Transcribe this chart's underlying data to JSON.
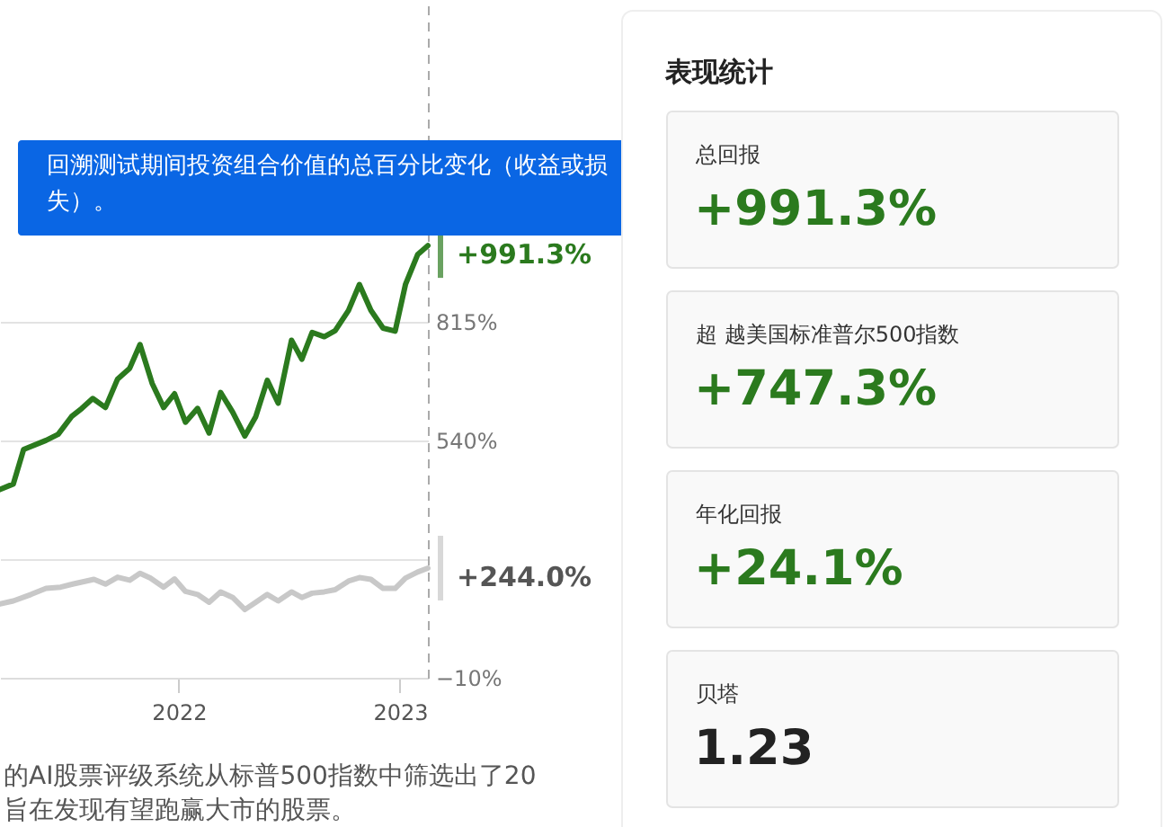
{
  "chart_data": [
    {
      "type": "line",
      "xlim": [
        "2021-03-12",
        "2023-02-16"
      ],
      "xticks": [
        {
          "value": "2022-01-01",
          "label": "2022"
        },
        {
          "value": "2023-01-01",
          "label": "2023"
        }
      ],
      "ylim": [
        -10,
        1560
      ],
      "yticks": [
        {
          "value": -10,
          "label": "−10%"
        },
        {
          "value": 265,
          "label": null
        },
        {
          "value": 540,
          "label": "540%"
        },
        {
          "value": 815,
          "label": "815%"
        }
      ],
      "grid": "y",
      "series": [
        {
          "color": "#2b7a1e",
          "x": [
            "2021-03-12",
            "2021-04-03",
            "2021-04-20",
            "2021-05-27",
            "2021-06-16",
            "2021-07-08",
            "2021-07-25",
            "2021-08-12",
            "2021-09-02",
            "2021-09-22",
            "2021-10-12",
            "2021-10-29",
            "2021-11-18",
            "2021-12-07",
            "2021-12-25",
            "2022-01-12",
            "2022-02-01",
            "2022-02-20",
            "2022-03-11",
            "2022-03-31",
            "2022-04-20",
            "2022-05-08",
            "2022-05-27",
            "2022-06-14",
            "2022-07-06",
            "2022-07-23",
            "2022-08-09",
            "2022-08-29",
            "2022-09-16",
            "2022-10-08",
            "2022-10-26",
            "2022-11-14",
            "2022-12-04",
            "2022-12-24",
            "2023-01-10",
            "2023-01-30",
            "2023-02-16"
          ],
          "values": [
            426,
            439,
            519,
            540,
            554,
            595,
            614,
            637,
            616,
            682,
            707,
            762,
            672,
            616,
            648,
            582,
            614,
            557,
            651,
            605,
            550,
            595,
            679,
            626,
            772,
            728,
            790,
            780,
            794,
            841,
            901,
            841,
            800,
            793,
            901,
            970,
            991
          ]
        },
        {
          "color": "#c8c8c8",
          "x": [
            "2021-03-12",
            "2021-04-03",
            "2021-05-02",
            "2021-05-27",
            "2021-06-20",
            "2021-07-10",
            "2021-08-14",
            "2021-09-02",
            "2021-09-22",
            "2021-10-12",
            "2021-10-29",
            "2021-11-15",
            "2021-12-07",
            "2021-12-25",
            "2022-01-12",
            "2022-02-01",
            "2022-02-20",
            "2022-03-11",
            "2022-03-31",
            "2022-04-20",
            "2022-05-08",
            "2022-05-27",
            "2022-06-14",
            "2022-07-06",
            "2022-07-23",
            "2022-08-09",
            "2022-08-29",
            "2022-09-16",
            "2022-10-08",
            "2022-10-26",
            "2022-11-14",
            "2022-12-04",
            "2022-12-24",
            "2023-01-10",
            "2023-01-30",
            "2023-02-16"
          ],
          "values": [
            161,
            168,
            183,
            197,
            200,
            207,
            218,
            207,
            223,
            216,
            232,
            221,
            200,
            219,
            190,
            183,
            165,
            189,
            176,
            148,
            165,
            183,
            168,
            189,
            176,
            186,
            189,
            194,
            214,
            222,
            218,
            197,
            197,
            221,
            235,
            244
          ]
        }
      ],
      "annotations": [
        {
          "text": "+991.3%",
          "x": "2023-02-16",
          "y": 991.3
        },
        {
          "text": "+244.0%",
          "x": "2023-02-16",
          "y": 244.0
        },
        "回溯测试期间投资组合价值的总百分比变化（收益或损失）。",
        "的AI股票评级系统从标普500指数中筛选出了20 旨在发现有望跑赢大市的股票。"
      ]
    },
    {
      "type": "other",
      "title": "表现统计",
      "annotations": [
        "总回报",
        "+991.3%",
        "超 越美国标准普尔500指数",
        "+747.3%",
        "年化回报",
        "+24.1%",
        "贝塔",
        "1.23"
      ]
    }
  ]
}
